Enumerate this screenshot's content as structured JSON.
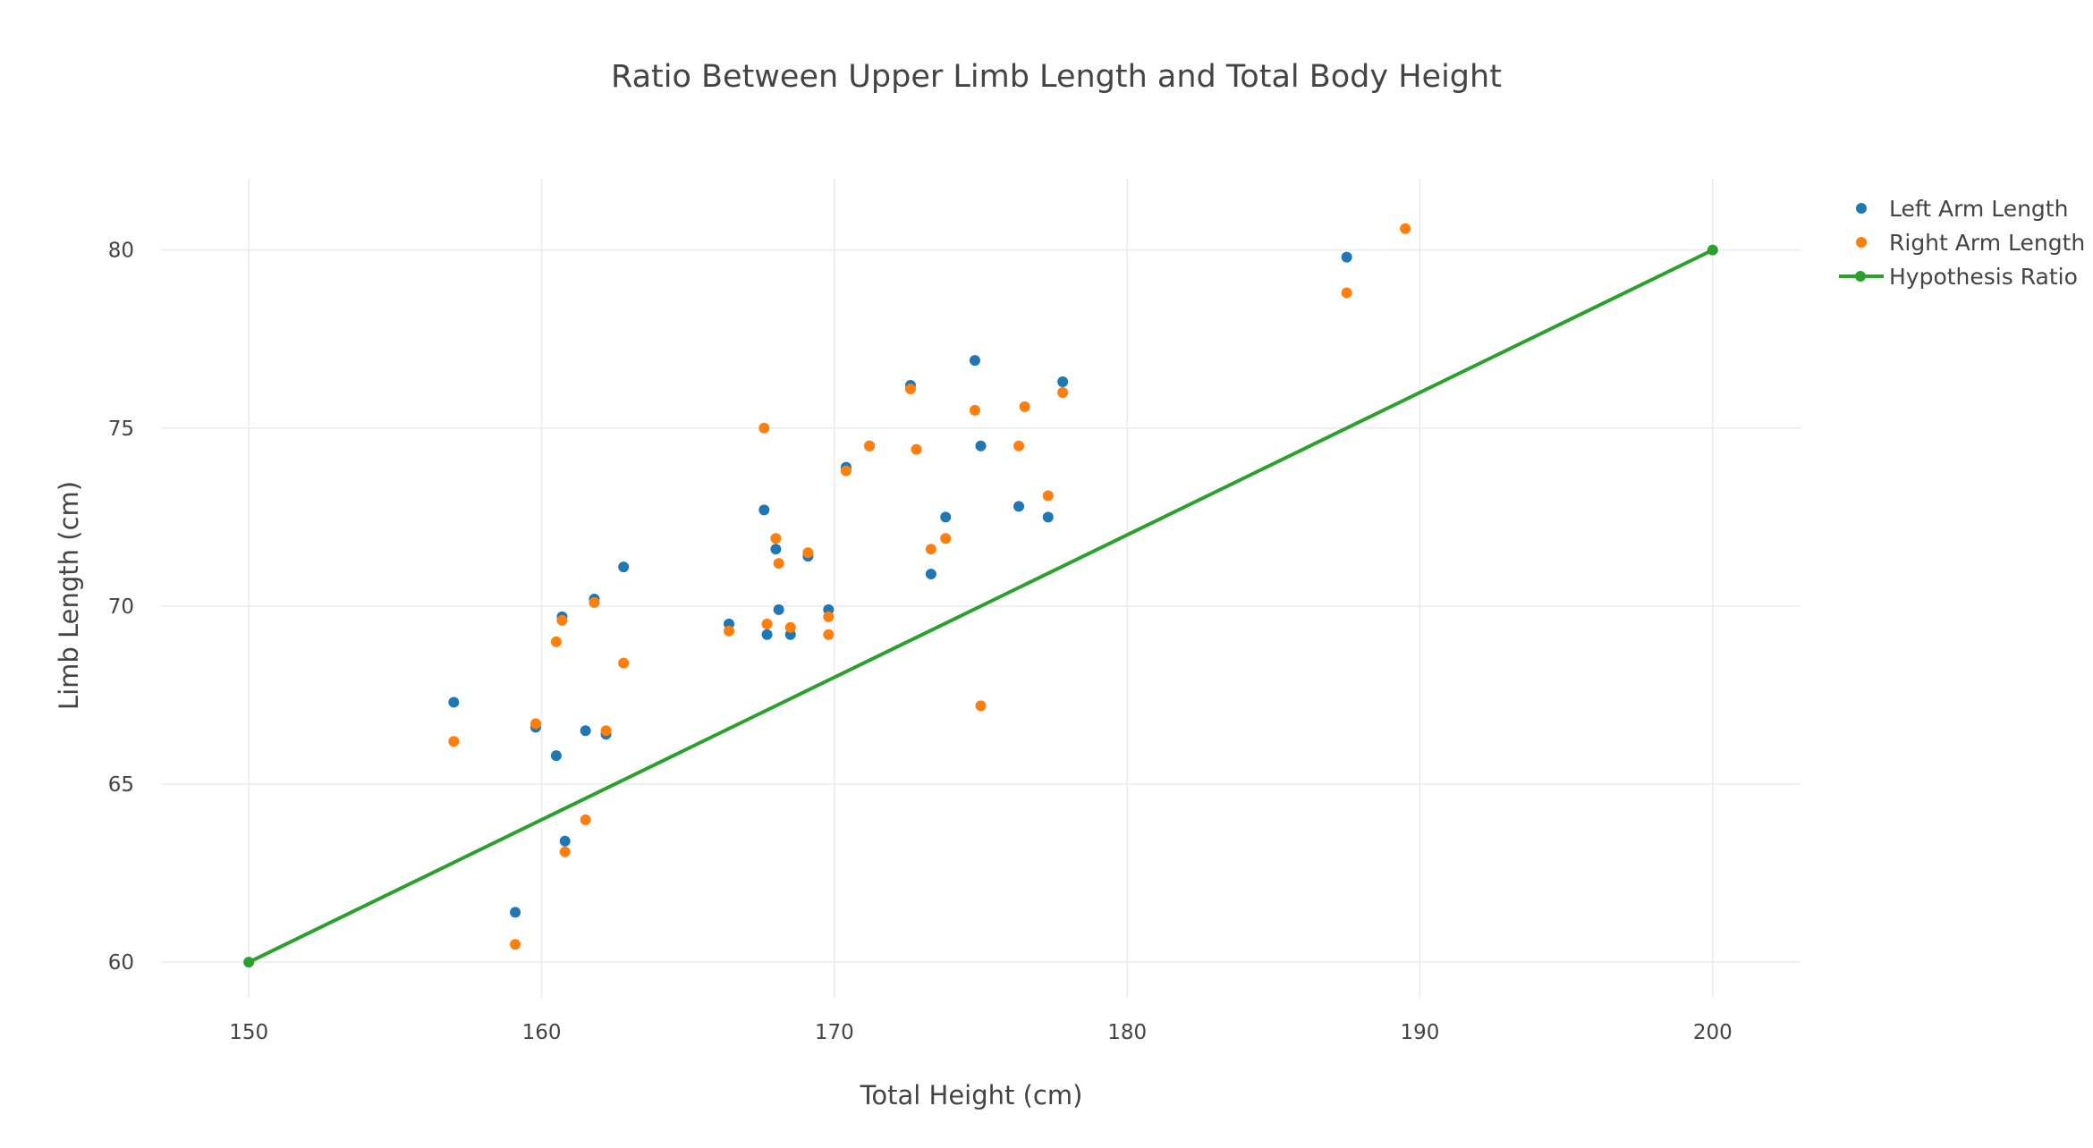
{
  "chart_data": {
    "type": "scatter",
    "title": "Ratio Between Upper Limb Length and Total Body Height",
    "xlabel": "Total Height (cm)",
    "ylabel": "Limb Length (cm)",
    "xlim": [
      147,
      203
    ],
    "ylim": [
      59,
      82
    ],
    "x_ticks": [
      150,
      160,
      170,
      180,
      190,
      200
    ],
    "y_ticks": [
      60,
      65,
      70,
      75,
      80
    ],
    "grid": true,
    "legend_position": "top-right",
    "series": [
      {
        "name": "Left Arm Length",
        "mode": "markers",
        "color": "#1f77b4",
        "points": [
          [
            157.0,
            67.3
          ],
          [
            159.1,
            61.4
          ],
          [
            159.8,
            66.6
          ],
          [
            160.5,
            65.8
          ],
          [
            160.7,
            69.7
          ],
          [
            160.8,
            63.4
          ],
          [
            161.5,
            66.5
          ],
          [
            161.8,
            70.2
          ],
          [
            162.2,
            66.4
          ],
          [
            162.8,
            71.1
          ],
          [
            166.4,
            69.5
          ],
          [
            167.6,
            72.7
          ],
          [
            167.7,
            69.2
          ],
          [
            168.0,
            71.6
          ],
          [
            168.1,
            69.9
          ],
          [
            168.5,
            69.2
          ],
          [
            169.1,
            71.4
          ],
          [
            169.8,
            69.9
          ],
          [
            170.4,
            73.9
          ],
          [
            171.2,
            74.5
          ],
          [
            172.6,
            76.2
          ],
          [
            173.3,
            70.9
          ],
          [
            173.8,
            72.5
          ],
          [
            174.8,
            76.9
          ],
          [
            175.0,
            74.5
          ],
          [
            176.3,
            72.8
          ],
          [
            177.3,
            72.5
          ],
          [
            177.8,
            76.3
          ],
          [
            187.5,
            79.8
          ]
        ]
      },
      {
        "name": "Right Arm Length",
        "mode": "markers",
        "color": "#ff7f0e",
        "points": [
          [
            157.0,
            66.2
          ],
          [
            159.1,
            60.5
          ],
          [
            159.8,
            66.7
          ],
          [
            160.5,
            69.0
          ],
          [
            160.7,
            69.6
          ],
          [
            160.8,
            63.1
          ],
          [
            161.5,
            64.0
          ],
          [
            161.8,
            70.1
          ],
          [
            162.2,
            66.5
          ],
          [
            162.8,
            68.4
          ],
          [
            166.4,
            69.3
          ],
          [
            167.6,
            75.0
          ],
          [
            167.7,
            69.5
          ],
          [
            168.0,
            71.9
          ],
          [
            168.1,
            71.2
          ],
          [
            168.5,
            69.4
          ],
          [
            169.1,
            71.5
          ],
          [
            169.8,
            69.7
          ],
          [
            169.8,
            69.2
          ],
          [
            170.4,
            73.8
          ],
          [
            171.2,
            74.5
          ],
          [
            172.6,
            76.1
          ],
          [
            172.8,
            74.4
          ],
          [
            173.3,
            71.6
          ],
          [
            173.8,
            71.9
          ],
          [
            174.8,
            75.5
          ],
          [
            175.0,
            67.2
          ],
          [
            176.3,
            74.5
          ],
          [
            176.5,
            75.6
          ],
          [
            177.3,
            73.1
          ],
          [
            177.8,
            76.0
          ],
          [
            187.5,
            78.8
          ],
          [
            189.5,
            80.6
          ]
        ]
      },
      {
        "name": "Hypothesis Ratio",
        "mode": "lines+markers",
        "color": "#2ca02c",
        "points": [
          [
            150,
            60
          ],
          [
            200,
            80
          ]
        ]
      }
    ]
  }
}
